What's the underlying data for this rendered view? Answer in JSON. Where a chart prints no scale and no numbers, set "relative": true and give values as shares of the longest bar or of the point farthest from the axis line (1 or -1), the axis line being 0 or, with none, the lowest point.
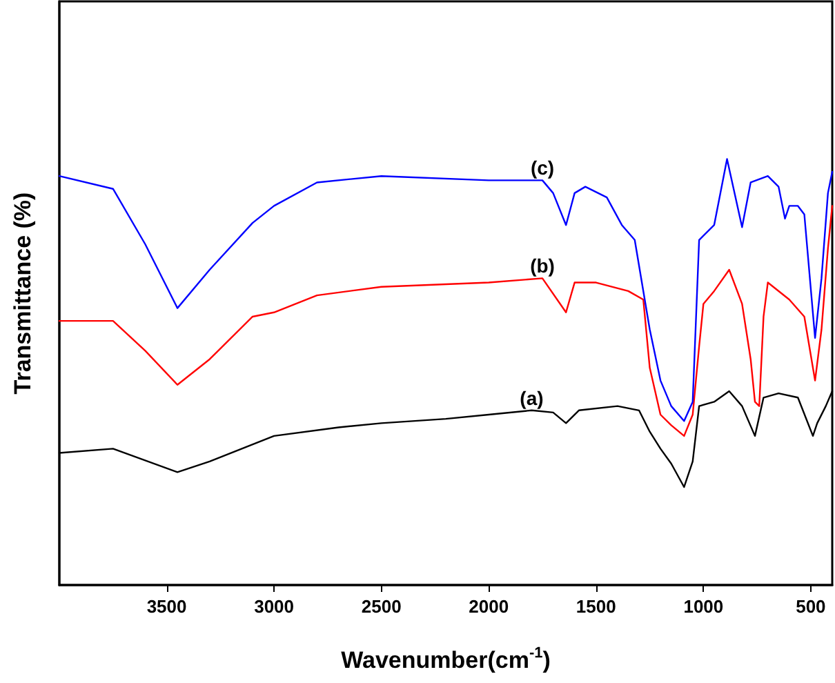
{
  "chart_data": {
    "type": "line",
    "relative": true,
    "xlabel": "Wavenumber(cm$^{-1}$)",
    "ylabel": "Transmittance (%)",
    "xlim": [
      4000,
      400
    ],
    "xticks": [
      3500,
      3000,
      2500,
      2000,
      1500,
      1000,
      500
    ],
    "grid": false,
    "marker": "none",
    "line_style": "solid",
    "series": [
      {
        "name": "(a)",
        "color": "#000000",
        "x": [
          4000,
          3750,
          3450,
          3300,
          3000,
          2700,
          2500,
          2200,
          2000,
          1800,
          1700,
          1640,
          1580,
          1400,
          1300,
          1250,
          1200,
          1150,
          1090,
          1050,
          1020,
          950,
          880,
          820,
          760,
          720,
          650,
          560,
          490,
          470,
          430,
          400
        ],
        "values": [
          0.31,
          0.32,
          0.265,
          0.29,
          0.35,
          0.37,
          0.38,
          0.39,
          0.4,
          0.41,
          0.405,
          0.38,
          0.41,
          0.42,
          0.41,
          0.36,
          0.32,
          0.285,
          0.23,
          0.29,
          0.42,
          0.43,
          0.455,
          0.42,
          0.35,
          0.44,
          0.45,
          0.44,
          0.35,
          0.38,
          0.42,
          0.455
        ]
      },
      {
        "name": "(b)",
        "color": "#ff0000",
        "x": [
          4000,
          3750,
          3600,
          3450,
          3300,
          3100,
          3000,
          2800,
          2500,
          2000,
          1750,
          1640,
          1600,
          1500,
          1350,
          1280,
          1250,
          1200,
          1150,
          1090,
          1050,
          1020,
          1000,
          950,
          880,
          820,
          780,
          760,
          740,
          720,
          700,
          600,
          530,
          480,
          450,
          420,
          400
        ],
        "values": [
          0.62,
          0.62,
          0.55,
          0.47,
          0.53,
          0.63,
          0.64,
          0.68,
          0.7,
          0.71,
          0.72,
          0.64,
          0.71,
          0.71,
          0.69,
          0.67,
          0.51,
          0.4,
          0.375,
          0.35,
          0.4,
          0.56,
          0.66,
          0.69,
          0.74,
          0.66,
          0.53,
          0.43,
          0.42,
          0.63,
          0.71,
          0.67,
          0.63,
          0.48,
          0.6,
          0.79,
          0.89
        ]
      },
      {
        "name": "(c)",
        "color": "#0000ff",
        "x": [
          4000,
          3750,
          3600,
          3450,
          3300,
          3100,
          3000,
          2800,
          2500,
          2000,
          1750,
          1700,
          1640,
          1600,
          1550,
          1450,
          1380,
          1320,
          1250,
          1200,
          1150,
          1090,
          1050,
          1020,
          1000,
          950,
          890,
          820,
          780,
          700,
          650,
          620,
          600,
          560,
          530,
          480,
          450,
          420,
          400
        ],
        "values": [
          0.96,
          0.93,
          0.8,
          0.65,
          0.74,
          0.85,
          0.89,
          0.945,
          0.96,
          0.95,
          0.95,
          0.92,
          0.845,
          0.92,
          0.935,
          0.91,
          0.845,
          0.81,
          0.6,
          0.48,
          0.42,
          0.385,
          0.43,
          0.81,
          0.82,
          0.845,
          1.0,
          0.84,
          0.945,
          0.96,
          0.935,
          0.86,
          0.89,
          0.89,
          0.87,
          0.58,
          0.72,
          0.92,
          0.97
        ]
      }
    ]
  }
}
